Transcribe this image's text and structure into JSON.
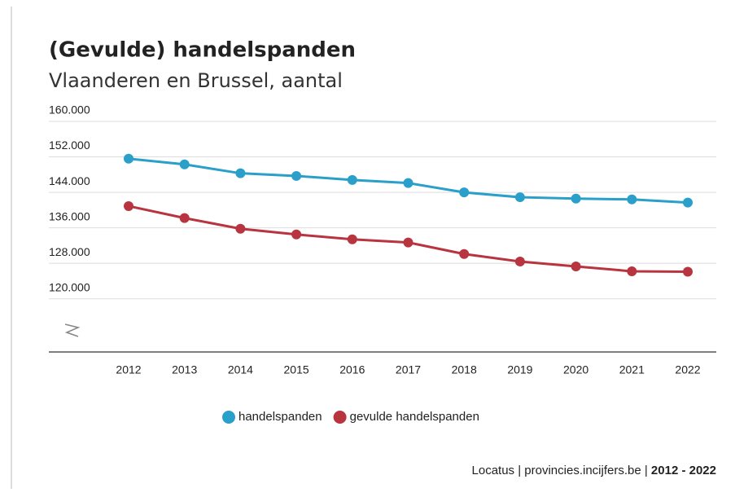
{
  "chart_data": {
    "type": "line",
    "title": "(Gevulde) handelspanden",
    "subtitle": "Vlaanderen en Brussel, aantal",
    "categories": [
      "2012",
      "2013",
      "2014",
      "2015",
      "2016",
      "2017",
      "2018",
      "2019",
      "2020",
      "2021",
      "2022"
    ],
    "series": [
      {
        "name": "handelspanden",
        "color": "#2a9fc9",
        "values": [
          151600,
          150300,
          148300,
          147700,
          146800,
          146100,
          144000,
          142900,
          142600,
          142400,
          141700
        ]
      },
      {
        "name": "gevulde handelspanden",
        "color": "#b8343f",
        "values": [
          140900,
          138200,
          135800,
          134500,
          133400,
          132700,
          130100,
          128400,
          127300,
          126200,
          126100
        ]
      }
    ],
    "ylim": [
      108000,
      160000
    ],
    "yticks": [
      {
        "value": 120000,
        "label": "120.000"
      },
      {
        "value": 128000,
        "label": "128.000"
      },
      {
        "value": 136000,
        "label": "136.000"
      },
      {
        "value": 144000,
        "label": "144.000"
      },
      {
        "value": 152000,
        "label": "152.000"
      },
      {
        "value": 160000,
        "label": "160.000"
      }
    ],
    "grid": true,
    "legend": "bottom",
    "source": "Locatus | provincies.incijfers.be |",
    "period": "2012 - 2022"
  }
}
